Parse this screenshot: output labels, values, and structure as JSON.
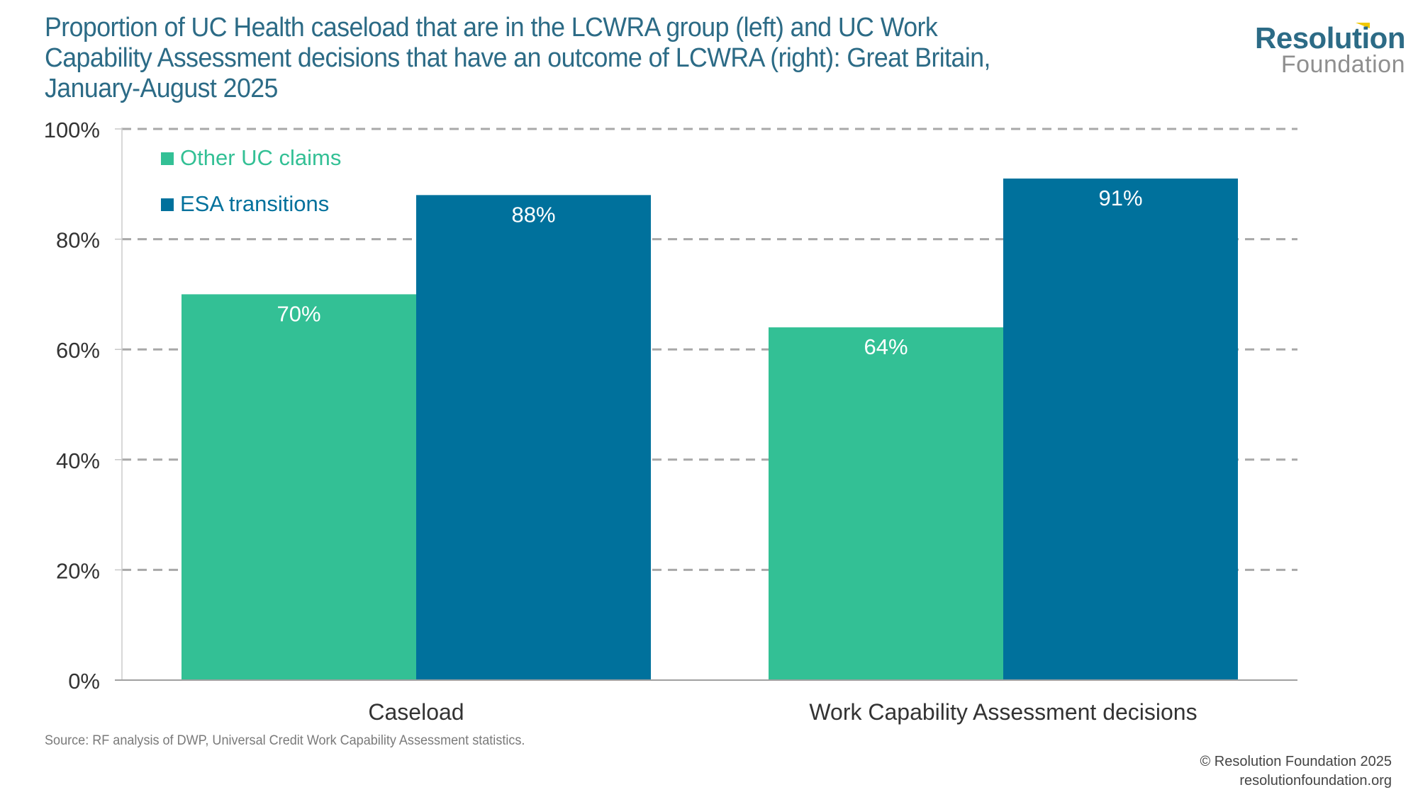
{
  "title_lines": [
    "Proportion of UC Health caseload that are in the LCWRA group (left) and UC Work",
    "Capability Assessment decisions that have an outcome of LCWRA (right): Great Britain,",
    "January-August 2025"
  ],
  "logo": {
    "line1": "Resolution",
    "line2": "Foundation",
    "accent_color": "#f0c800"
  },
  "source": "Source: RF analysis of DWP, Universal Credit Work Capability Assessment statistics.",
  "copyright": {
    "line1": "© Resolution Foundation 2025",
    "line2": "resolutionfoundation.org"
  },
  "colors": {
    "title": "#2c6b86",
    "other_uc": "#33c095",
    "esa": "#00719c",
    "grid": "#a8a8a8",
    "axis_text": "#333333"
  },
  "chart_data": {
    "type": "bar",
    "title": "Proportion of UC Health caseload that are in the LCWRA group (left) and UC Work Capability Assessment decisions that have an outcome of LCWRA (right): Great Britain, January-August 2025",
    "xlabel": "",
    "ylabel": "",
    "categories": [
      "Caseload",
      "Work Capability Assessment decisions"
    ],
    "series": [
      {
        "name": "Other UC claims",
        "color": "#33c095",
        "values": [
          70,
          64
        ],
        "labels": [
          "70%",
          "64%"
        ]
      },
      {
        "name": "ESA transitions",
        "color": "#00719c",
        "values": [
          88,
          91
        ],
        "labels": [
          "88%",
          "91%"
        ]
      }
    ],
    "ylim": [
      0,
      100
    ],
    "yticks": [
      0,
      20,
      40,
      60,
      80,
      100
    ],
    "ytick_labels": [
      "0%",
      "20%",
      "40%",
      "60%",
      "80%",
      "100%"
    ],
    "grid": "horizontal dashed",
    "legend": "top-left (inside plot)"
  }
}
